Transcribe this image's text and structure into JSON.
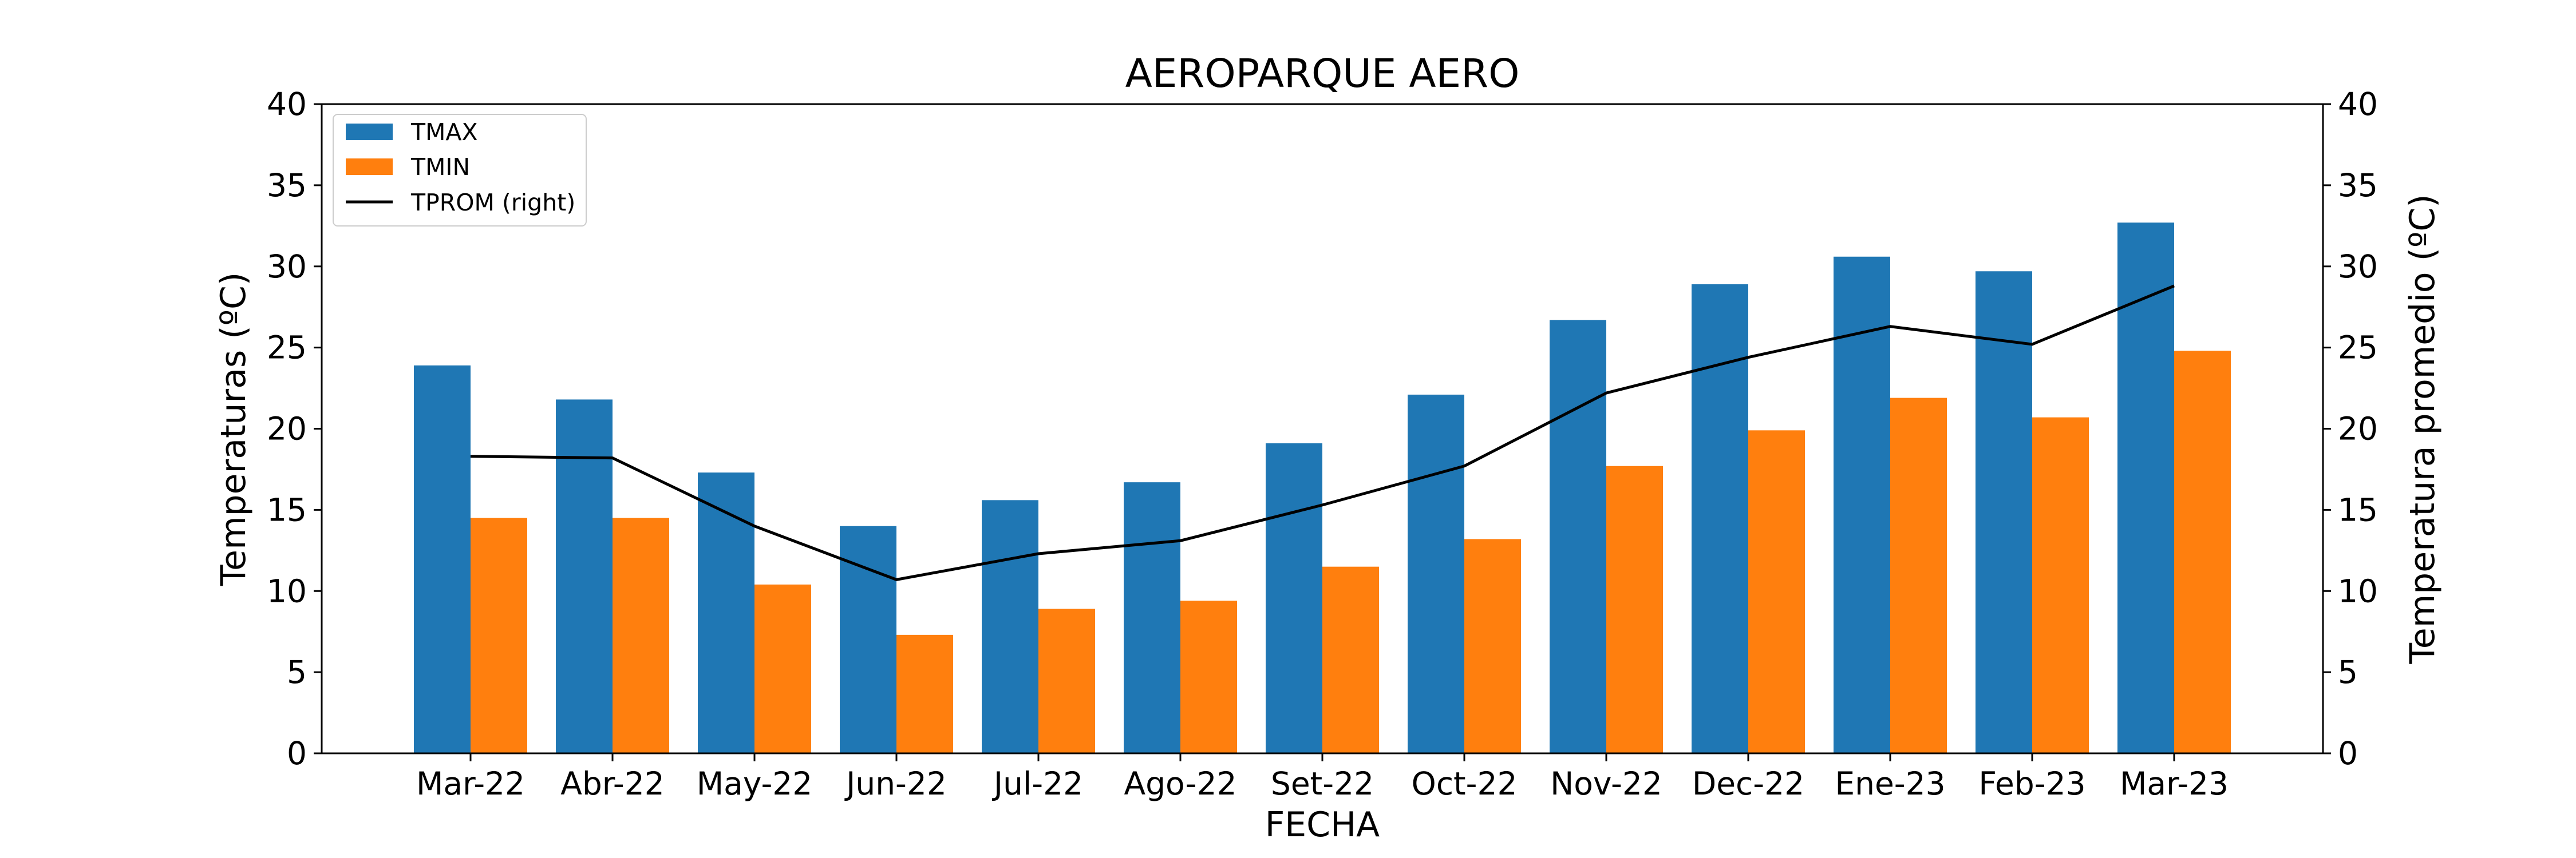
{
  "chart_data": {
    "type": "bar",
    "title": "AEROPARQUE AERO",
    "xlabel": "FECHA",
    "ylabel": "Temperaturas (ºC)",
    "ylabel_right": "Temperatura promedio (ºC)",
    "ylim": [
      0,
      40
    ],
    "ylim_right": [
      0,
      40
    ],
    "yticks": [
      "0",
      "5",
      "10",
      "15",
      "20",
      "25",
      "30",
      "35",
      "40"
    ],
    "yticks_right": [
      "0",
      "5",
      "10",
      "15",
      "20",
      "25",
      "30",
      "35",
      "40"
    ],
    "categories": [
      "Mar-22",
      "Abr-22",
      "May-22",
      "Jun-22",
      "Jul-22",
      "Ago-22",
      "Set-22",
      "Oct-22",
      "Nov-22",
      "Dec-22",
      "Ene-23",
      "Feb-23",
      "Mar-23"
    ],
    "series": [
      {
        "name": "TMAX",
        "type": "bar",
        "color": "#1f77b4",
        "values": [
          23.9,
          21.8,
          17.3,
          14.0,
          15.6,
          16.7,
          19.1,
          22.1,
          26.7,
          28.9,
          30.6,
          29.7,
          32.7
        ]
      },
      {
        "name": "TMIN",
        "type": "bar",
        "color": "#ff7f0e",
        "values": [
          14.5,
          14.5,
          10.4,
          7.3,
          8.9,
          9.4,
          11.5,
          13.2,
          17.7,
          19.9,
          21.9,
          20.7,
          24.8
        ]
      },
      {
        "name": "TPROM (right)",
        "type": "line",
        "axis": "right",
        "color": "#000000",
        "values": [
          18.3,
          18.2,
          14.0,
          10.7,
          12.3,
          13.1,
          15.3,
          17.7,
          22.2,
          24.4,
          26.3,
          25.2,
          28.8
        ]
      }
    ],
    "grid": false,
    "legend": "top-left"
  }
}
